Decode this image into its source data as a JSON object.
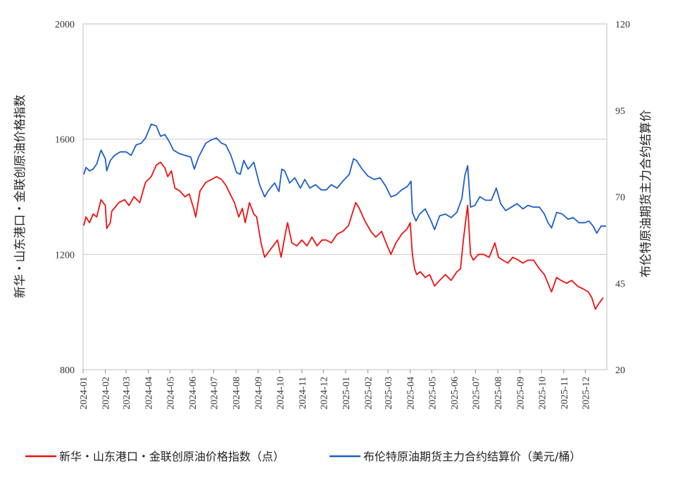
{
  "chart_data": {
    "type": "line",
    "title": "",
    "xlabel": "",
    "x_ticks": [
      "2024-01",
      "2024-02",
      "2024-03",
      "2024-04",
      "2024-05",
      "2024-06",
      "2024-07",
      "2024-08",
      "2024-09",
      "2024-10",
      "2024-11",
      "2024-12",
      "2025-01",
      "2025-02",
      "2025-03",
      "2025-04",
      "2025-05",
      "2025-06",
      "2025-07",
      "2025-08",
      "2025-09",
      "2025-10",
      "2025-11",
      "2025-12"
    ],
    "y_left": {
      "label": "新华・山东港口・金联创原油价格指数",
      "ylim": [
        800,
        2000
      ],
      "ticks": [
        "800",
        "1200",
        "1600",
        "2000"
      ]
    },
    "y_right": {
      "label": "布伦特原油期货主力合约结算价",
      "ylim": [
        20,
        120
      ],
      "ticks": [
        "20",
        "45",
        "70",
        "95",
        "120"
      ]
    },
    "grid": "horizontal",
    "legend_position": "bottom",
    "series": [
      {
        "name": "新华・山东港口・金联创原油价格指数（点）",
        "axis": "left",
        "color": "#ee1111",
        "points": [
          [
            "2024-01-02",
            1300
          ],
          [
            "2024-01-05",
            1330
          ],
          [
            "2024-01-10",
            1310
          ],
          [
            "2024-01-15",
            1340
          ],
          [
            "2024-01-20",
            1330
          ],
          [
            "2024-01-26",
            1390
          ],
          [
            "2024-02-01",
            1370
          ],
          [
            "2024-02-03",
            1290
          ],
          [
            "2024-02-08",
            1310
          ],
          [
            "2024-02-10",
            1350
          ],
          [
            "2024-02-20",
            1380
          ],
          [
            "2024-02-28",
            1390
          ],
          [
            "2024-03-05",
            1370
          ],
          [
            "2024-03-12",
            1400
          ],
          [
            "2024-03-20",
            1380
          ],
          [
            "2024-03-28",
            1450
          ],
          [
            "2024-04-05",
            1470
          ],
          [
            "2024-04-12",
            1510
          ],
          [
            "2024-04-18",
            1520
          ],
          [
            "2024-04-24",
            1500
          ],
          [
            "2024-04-28",
            1470
          ],
          [
            "2024-05-03",
            1490
          ],
          [
            "2024-05-08",
            1430
          ],
          [
            "2024-05-15",
            1420
          ],
          [
            "2024-05-22",
            1400
          ],
          [
            "2024-05-28",
            1410
          ],
          [
            "2024-06-03",
            1360
          ],
          [
            "2024-06-06",
            1330
          ],
          [
            "2024-06-12",
            1420
          ],
          [
            "2024-06-20",
            1450
          ],
          [
            "2024-06-28",
            1460
          ],
          [
            "2024-07-05",
            1470
          ],
          [
            "2024-07-12",
            1460
          ],
          [
            "2024-07-18",
            1440
          ],
          [
            "2024-07-24",
            1410
          ],
          [
            "2024-07-30",
            1380
          ],
          [
            "2024-08-05",
            1330
          ],
          [
            "2024-08-10",
            1360
          ],
          [
            "2024-08-14",
            1310
          ],
          [
            "2024-08-20",
            1380
          ],
          [
            "2024-08-26",
            1340
          ],
          [
            "2024-08-30",
            1330
          ],
          [
            "2024-09-05",
            1240
          ],
          [
            "2024-09-10",
            1190
          ],
          [
            "2024-09-16",
            1210
          ],
          [
            "2024-09-22",
            1230
          ],
          [
            "2024-09-28",
            1250
          ],
          [
            "2024-10-03",
            1190
          ],
          [
            "2024-10-08",
            1260
          ],
          [
            "2024-10-12",
            1310
          ],
          [
            "2024-10-18",
            1240
          ],
          [
            "2024-10-25",
            1230
          ],
          [
            "2024-11-01",
            1250
          ],
          [
            "2024-11-08",
            1230
          ],
          [
            "2024-11-15",
            1260
          ],
          [
            "2024-11-22",
            1230
          ],
          [
            "2024-11-29",
            1250
          ],
          [
            "2024-12-05",
            1250
          ],
          [
            "2024-12-12",
            1240
          ],
          [
            "2024-12-20",
            1270
          ],
          [
            "2024-12-28",
            1280
          ],
          [
            "2025-01-05",
            1300
          ],
          [
            "2025-01-10",
            1340
          ],
          [
            "2025-01-15",
            1380
          ],
          [
            "2025-01-20",
            1360
          ],
          [
            "2025-01-27",
            1320
          ],
          [
            "2025-02-05",
            1280
          ],
          [
            "2025-02-12",
            1260
          ],
          [
            "2025-02-20",
            1280
          ],
          [
            "2025-02-28",
            1230
          ],
          [
            "2025-03-05",
            1200
          ],
          [
            "2025-03-12",
            1240
          ],
          [
            "2025-03-20",
            1270
          ],
          [
            "2025-03-28",
            1290
          ],
          [
            "2025-04-01",
            1310
          ],
          [
            "2025-04-04",
            1200
          ],
          [
            "2025-04-07",
            1150
          ],
          [
            "2025-04-10",
            1130
          ],
          [
            "2025-04-15",
            1140
          ],
          [
            "2025-04-22",
            1120
          ],
          [
            "2025-04-28",
            1130
          ],
          [
            "2025-05-05",
            1090
          ],
          [
            "2025-05-12",
            1110
          ],
          [
            "2025-05-20",
            1130
          ],
          [
            "2025-05-28",
            1110
          ],
          [
            "2025-06-05",
            1140
          ],
          [
            "2025-06-10",
            1150
          ],
          [
            "2025-06-14",
            1250
          ],
          [
            "2025-06-18",
            1330
          ],
          [
            "2025-06-20",
            1370
          ],
          [
            "2025-06-24",
            1200
          ],
          [
            "2025-06-28",
            1180
          ],
          [
            "2025-07-05",
            1200
          ],
          [
            "2025-07-12",
            1200
          ],
          [
            "2025-07-20",
            1190
          ],
          [
            "2025-07-28",
            1240
          ],
          [
            "2025-08-02",
            1190
          ],
          [
            "2025-08-08",
            1180
          ],
          [
            "2025-08-15",
            1170
          ],
          [
            "2025-08-22",
            1190
          ],
          [
            "2025-08-30",
            1180
          ],
          [
            "2025-09-05",
            1170
          ],
          [
            "2025-09-12",
            1180
          ],
          [
            "2025-09-20",
            1180
          ],
          [
            "2025-09-28",
            1150
          ],
          [
            "2025-10-05",
            1130
          ],
          [
            "2025-10-10",
            1100
          ],
          [
            "2025-10-15",
            1070
          ],
          [
            "2025-10-22",
            1120
          ],
          [
            "2025-10-28",
            1110
          ],
          [
            "2025-11-05",
            1100
          ],
          [
            "2025-11-12",
            1110
          ],
          [
            "2025-11-20",
            1090
          ],
          [
            "2025-11-28",
            1080
          ],
          [
            "2025-12-05",
            1070
          ],
          [
            "2025-12-10",
            1050
          ],
          [
            "2025-12-15",
            1010
          ],
          [
            "2025-12-20",
            1030
          ],
          [
            "2025-12-26",
            1050
          ]
        ]
      },
      {
        "name": "布伦特原油期货主力合约结算价（美元/桶）",
        "axis": "right",
        "color": "#1e5ec8",
        "points": [
          [
            "2024-01-02",
            76.5
          ],
          [
            "2024-01-05",
            78.5
          ],
          [
            "2024-01-10",
            77.5
          ],
          [
            "2024-01-15",
            78.0
          ],
          [
            "2024-01-20",
            79.5
          ],
          [
            "2024-01-26",
            83.5
          ],
          [
            "2024-02-01",
            81.0
          ],
          [
            "2024-02-03",
            77.5
          ],
          [
            "2024-02-08",
            80.5
          ],
          [
            "2024-02-14",
            82.0
          ],
          [
            "2024-02-22",
            83.0
          ],
          [
            "2024-03-01",
            83.0
          ],
          [
            "2024-03-08",
            82.0
          ],
          [
            "2024-03-15",
            85.0
          ],
          [
            "2024-03-22",
            85.5
          ],
          [
            "2024-03-28",
            87.0
          ],
          [
            "2024-04-05",
            91.0
          ],
          [
            "2024-04-12",
            90.5
          ],
          [
            "2024-04-18",
            87.5
          ],
          [
            "2024-04-24",
            88.0
          ],
          [
            "2024-04-30",
            86.0
          ],
          [
            "2024-05-06",
            83.5
          ],
          [
            "2024-05-14",
            82.5
          ],
          [
            "2024-05-22",
            82.0
          ],
          [
            "2024-05-30",
            81.5
          ],
          [
            "2024-06-04",
            78.0
          ],
          [
            "2024-06-10",
            81.5
          ],
          [
            "2024-06-20",
            85.5
          ],
          [
            "2024-06-28",
            86.5
          ],
          [
            "2024-07-05",
            87.0
          ],
          [
            "2024-07-12",
            85.5
          ],
          [
            "2024-07-18",
            85.0
          ],
          [
            "2024-07-25",
            82.0
          ],
          [
            "2024-08-02",
            77.0
          ],
          [
            "2024-08-07",
            76.5
          ],
          [
            "2024-08-12",
            80.5
          ],
          [
            "2024-08-18",
            78.0
          ],
          [
            "2024-08-26",
            80.0
          ],
          [
            "2024-09-03",
            73.5
          ],
          [
            "2024-09-10",
            70.0
          ],
          [
            "2024-09-16",
            72.0
          ],
          [
            "2024-09-24",
            74.0
          ],
          [
            "2024-09-30",
            71.5
          ],
          [
            "2024-10-04",
            78.0
          ],
          [
            "2024-10-08",
            77.5
          ],
          [
            "2024-10-15",
            74.0
          ],
          [
            "2024-10-22",
            75.5
          ],
          [
            "2024-10-30",
            72.5
          ],
          [
            "2024-11-05",
            75.0
          ],
          [
            "2024-11-12",
            72.5
          ],
          [
            "2024-11-20",
            73.5
          ],
          [
            "2024-11-28",
            72.0
          ],
          [
            "2024-12-05",
            72.0
          ],
          [
            "2024-12-12",
            73.5
          ],
          [
            "2024-12-20",
            72.5
          ],
          [
            "2024-12-28",
            74.5
          ],
          [
            "2025-01-06",
            76.5
          ],
          [
            "2025-01-12",
            81.0
          ],
          [
            "2025-01-16",
            80.5
          ],
          [
            "2025-01-24",
            78.0
          ],
          [
            "2025-02-01",
            76.0
          ],
          [
            "2025-02-10",
            75.0
          ],
          [
            "2025-02-18",
            75.5
          ],
          [
            "2025-02-26",
            73.0
          ],
          [
            "2025-03-05",
            70.0
          ],
          [
            "2025-03-12",
            70.5
          ],
          [
            "2025-03-20",
            72.0
          ],
          [
            "2025-03-28",
            73.0
          ],
          [
            "2025-04-02",
            74.5
          ],
          [
            "2025-04-04",
            65.5
          ],
          [
            "2025-04-09",
            63.0
          ],
          [
            "2025-04-14",
            65.0
          ],
          [
            "2025-04-22",
            66.5
          ],
          [
            "2025-04-30",
            63.0
          ],
          [
            "2025-05-05",
            60.5
          ],
          [
            "2025-05-12",
            64.5
          ],
          [
            "2025-05-20",
            65.0
          ],
          [
            "2025-05-28",
            64.0
          ],
          [
            "2025-06-05",
            65.5
          ],
          [
            "2025-06-12",
            69.5
          ],
          [
            "2025-06-16",
            76.0
          ],
          [
            "2025-06-20",
            79.0
          ],
          [
            "2025-06-24",
            67.0
          ],
          [
            "2025-06-30",
            67.5
          ],
          [
            "2025-07-07",
            70.0
          ],
          [
            "2025-07-15",
            69.0
          ],
          [
            "2025-07-23",
            69.0
          ],
          [
            "2025-07-30",
            72.5
          ],
          [
            "2025-08-05",
            68.0
          ],
          [
            "2025-08-12",
            66.0
          ],
          [
            "2025-08-20",
            67.0
          ],
          [
            "2025-08-28",
            68.0
          ],
          [
            "2025-09-05",
            66.5
          ],
          [
            "2025-09-12",
            67.5
          ],
          [
            "2025-09-20",
            67.0
          ],
          [
            "2025-09-28",
            67.0
          ],
          [
            "2025-10-05",
            65.0
          ],
          [
            "2025-10-10",
            62.5
          ],
          [
            "2025-10-15",
            61.0
          ],
          [
            "2025-10-22",
            65.5
          ],
          [
            "2025-10-30",
            65.0
          ],
          [
            "2025-11-07",
            63.5
          ],
          [
            "2025-11-14",
            64.0
          ],
          [
            "2025-11-22",
            62.5
          ],
          [
            "2025-11-30",
            62.5
          ],
          [
            "2025-12-06",
            63.0
          ],
          [
            "2025-12-12",
            61.5
          ],
          [
            "2025-12-17",
            59.5
          ],
          [
            "2025-12-23",
            61.5
          ],
          [
            "2025-12-30",
            61.5
          ]
        ]
      }
    ]
  }
}
